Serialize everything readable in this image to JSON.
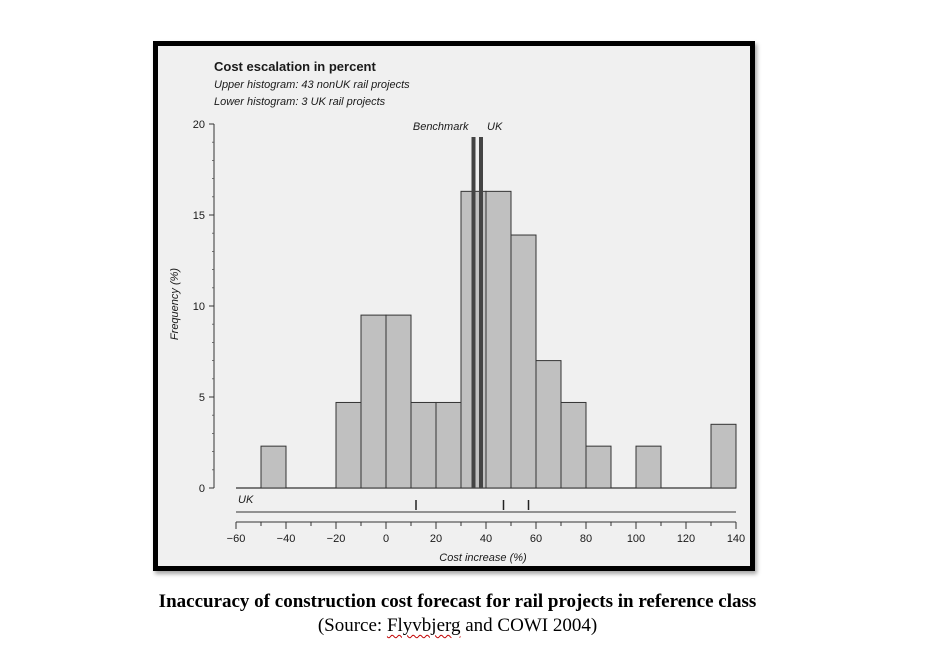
{
  "chart_data": {
    "type": "bar",
    "title": "Cost escalation in percent",
    "subtitles": [
      "Upper histogram: 43 nonUK rail projects",
      "Lower histogram: 3 UK rail projects"
    ],
    "xlabel": "Cost increase (%)",
    "ylabel": "Frequency (%)",
    "xlim": [
      -60,
      140
    ],
    "ylim": [
      0,
      20
    ],
    "xticks": [
      -60,
      -40,
      -20,
      0,
      20,
      40,
      60,
      80,
      100,
      120,
      140
    ],
    "yticks": [
      0,
      5,
      10,
      15,
      20
    ],
    "bin_width": 10,
    "bins": [
      {
        "start": -50,
        "value": 2.3
      },
      {
        "start": -20,
        "value": 4.7
      },
      {
        "start": -10,
        "value": 9.5
      },
      {
        "start": 0,
        "value": 9.5
      },
      {
        "start": 10,
        "value": 4.7
      },
      {
        "start": 20,
        "value": 4.7
      },
      {
        "start": 30,
        "value": 16.3
      },
      {
        "start": 40,
        "value": 16.3
      },
      {
        "start": 50,
        "value": 13.9
      },
      {
        "start": 60,
        "value": 7.0
      },
      {
        "start": 70,
        "value": 4.7
      },
      {
        "start": 80,
        "value": 2.3
      },
      {
        "start": 100,
        "value": 2.3
      },
      {
        "start": 130,
        "value": 3.5
      }
    ],
    "markers": [
      {
        "label": "Benchmark",
        "x": 35
      },
      {
        "label": "UK",
        "x": 38
      }
    ],
    "uk_label": "UK",
    "uk_projects": [
      12,
      47,
      57
    ],
    "grid": false,
    "colors": {
      "bar_fill": "#c0c0c0",
      "bar_stroke": "#333333",
      "marker_line": "#444444",
      "panel": "#f0f0f0"
    }
  },
  "caption": {
    "title": "Inaccuracy of construction cost forecast for rail projects in reference class",
    "source_prefix": "(Source: ",
    "source_name": "Flyvbjerg",
    "source_suffix": " and COWI 2004)"
  }
}
